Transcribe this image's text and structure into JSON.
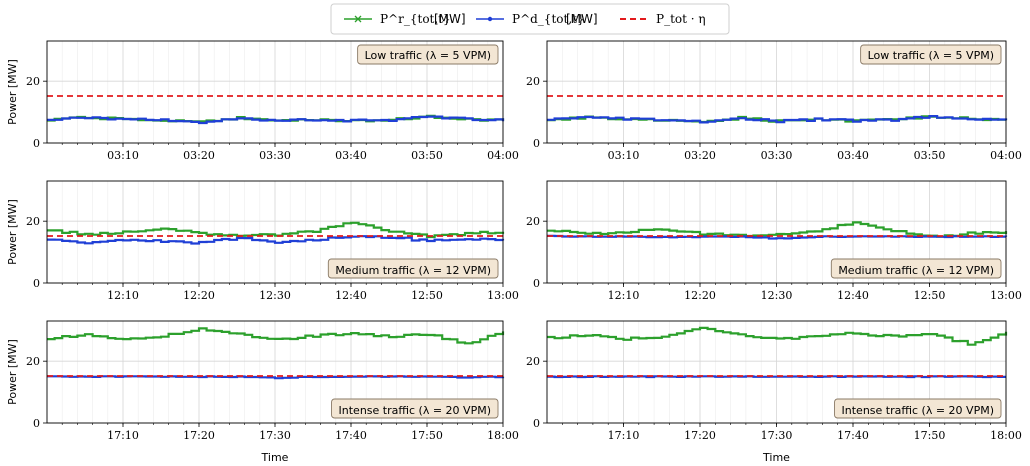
{
  "legend": {
    "items": [
      {
        "label": "P^r_{tot,t}",
        "unit": "[MW]",
        "color": "#2ca02c",
        "marker": "x"
      },
      {
        "label": "P^d_{tot,t}",
        "unit": "[MW]",
        "color": "#1f3fd6",
        "marker": "dot"
      },
      {
        "label": "P_tot · η",
        "unit": "",
        "color": "#e31a1c",
        "marker": "dashed"
      }
    ]
  },
  "colors": {
    "requested": "#2ca02c",
    "delivered": "#1f3fd6",
    "limit": "#e31a1c",
    "anno_bg": "#f3e6d4",
    "anno_border": "#8a7a66"
  },
  "chart_data": [
    {
      "type": "line",
      "panel": "row1-left",
      "annotation": "Low traffic (λ = 5 VPM)",
      "ylabel": "Power [MW]",
      "xlabel": "",
      "xlim": [
        "03:00",
        "04:00"
      ],
      "x_ticks": [
        "03:10",
        "03:20",
        "03:30",
        "03:40",
        "03:50",
        "04:00"
      ],
      "ylim": [
        0,
        33
      ],
      "y_ticks": [
        0,
        20
      ],
      "grid": true,
      "series": [
        {
          "name": "P^r_{tot,t}",
          "x": [
            "03:00",
            "03:05",
            "03:10",
            "03:15",
            "03:20",
            "03:25",
            "03:30",
            "03:35",
            "03:40",
            "03:45",
            "03:50",
            "03:55",
            "04:00"
          ],
          "values": [
            7.5,
            8.2,
            7.8,
            7.4,
            6.8,
            8.1,
            7.0,
            7.6,
            7.2,
            7.5,
            8.6,
            7.8,
            7.2
          ]
        },
        {
          "name": "P^d_{tot,t}",
          "x": [
            "03:00",
            "03:05",
            "03:10",
            "03:15",
            "03:20",
            "03:25",
            "03:30",
            "03:35",
            "03:40",
            "03:45",
            "03:50",
            "03:55",
            "04:00"
          ],
          "values": [
            7.5,
            8.2,
            7.8,
            7.4,
            6.8,
            8.1,
            7.0,
            7.6,
            7.2,
            7.5,
            8.6,
            7.8,
            7.2
          ]
        },
        {
          "name": "P_tot · η",
          "x": [
            "03:00",
            "04:00"
          ],
          "values": [
            15.2,
            15.2
          ]
        }
      ]
    },
    {
      "type": "line",
      "panel": "row1-right",
      "annotation": "Low traffic (λ = 5 VPM)",
      "ylabel": "",
      "xlabel": "",
      "xlim": [
        "03:00",
        "04:00"
      ],
      "x_ticks": [
        "03:10",
        "03:20",
        "03:30",
        "03:40",
        "03:50",
        "04:00"
      ],
      "ylim": [
        0,
        33
      ],
      "y_ticks": [
        0,
        20
      ],
      "grid": true,
      "series": [
        {
          "name": "P^r_{tot,t}",
          "x": [
            "03:00",
            "03:05",
            "03:10",
            "03:15",
            "03:20",
            "03:25",
            "03:30",
            "03:35",
            "03:40",
            "03:45",
            "03:50",
            "03:55",
            "04:00"
          ],
          "values": [
            7.5,
            8.2,
            7.8,
            7.4,
            6.8,
            8.1,
            7.0,
            7.6,
            7.2,
            7.5,
            8.6,
            7.8,
            7.2
          ]
        },
        {
          "name": "P^d_{tot,t}",
          "x": [
            "03:00",
            "03:05",
            "03:10",
            "03:15",
            "03:20",
            "03:25",
            "03:30",
            "03:35",
            "03:40",
            "03:45",
            "03:50",
            "03:55",
            "04:00"
          ],
          "values": [
            7.5,
            8.2,
            7.8,
            7.4,
            6.8,
            8.1,
            7.0,
            7.6,
            7.2,
            7.5,
            8.6,
            7.8,
            7.2
          ]
        },
        {
          "name": "P_tot · η",
          "x": [
            "03:00",
            "04:00"
          ],
          "values": [
            15.2,
            15.2
          ]
        }
      ]
    },
    {
      "type": "line",
      "panel": "row2-left",
      "annotation": "Medium traffic (λ = 12 VPM)",
      "ylabel": "Power [MW]",
      "xlabel": "",
      "xlim": [
        "12:00",
        "13:00"
      ],
      "x_ticks": [
        "12:10",
        "12:20",
        "12:30",
        "12:40",
        "12:50",
        "13:00"
      ],
      "ylim": [
        0,
        33
      ],
      "y_ticks": [
        0,
        20
      ],
      "grid": true,
      "series": [
        {
          "name": "P^r_{tot,t}",
          "x": [
            "12:00",
            "12:05",
            "12:10",
            "12:15",
            "12:20",
            "12:25",
            "12:30",
            "12:35",
            "12:40",
            "12:45",
            "12:50",
            "12:55",
            "13:00"
          ],
          "values": [
            17.0,
            15.8,
            16.4,
            17.6,
            16.0,
            15.4,
            15.6,
            16.8,
            19.6,
            16.8,
            15.0,
            16.0,
            16.6
          ]
        },
        {
          "name": "P^d_{tot,t}",
          "x": [
            "12:00",
            "12:05",
            "12:10",
            "12:15",
            "12:20",
            "12:25",
            "12:30",
            "12:35",
            "12:40",
            "12:45",
            "12:50",
            "12:55",
            "13:00"
          ],
          "values": [
            14.2,
            13.2,
            14.0,
            13.6,
            13.0,
            14.6,
            13.2,
            14.0,
            15.0,
            14.8,
            13.6,
            14.4,
            14.0
          ]
        },
        {
          "name": "P_tot · η",
          "x": [
            "12:00",
            "13:00"
          ],
          "values": [
            15.2,
            15.2
          ]
        }
      ]
    },
    {
      "type": "line",
      "panel": "row2-right",
      "annotation": "Medium traffic (λ = 12 VPM)",
      "ylabel": "",
      "xlabel": "",
      "xlim": [
        "12:00",
        "13:00"
      ],
      "x_ticks": [
        "12:10",
        "12:20",
        "12:30",
        "12:40",
        "12:50",
        "13:00"
      ],
      "ylim": [
        0,
        33
      ],
      "y_ticks": [
        0,
        20
      ],
      "grid": true,
      "series": [
        {
          "name": "P^r_{tot,t}",
          "x": [
            "12:00",
            "12:05",
            "12:10",
            "12:15",
            "12:20",
            "12:25",
            "12:30",
            "12:35",
            "12:40",
            "12:45",
            "12:50",
            "12:55",
            "13:00"
          ],
          "values": [
            17.0,
            15.8,
            16.4,
            17.6,
            16.0,
            15.4,
            15.6,
            16.8,
            19.6,
            16.8,
            15.0,
            16.0,
            16.6
          ]
        },
        {
          "name": "P^d_{tot,t}",
          "x": [
            "12:00",
            "12:05",
            "12:10",
            "12:15",
            "12:20",
            "12:25",
            "12:30",
            "12:35",
            "12:40",
            "12:45",
            "12:50",
            "12:55",
            "13:00"
          ],
          "values": [
            15.2,
            15.0,
            15.0,
            14.8,
            15.0,
            15.0,
            14.4,
            15.0,
            15.0,
            15.0,
            15.0,
            15.0,
            15.0
          ]
        },
        {
          "name": "P_tot · η",
          "x": [
            "12:00",
            "13:00"
          ],
          "values": [
            15.2,
            15.2
          ]
        }
      ]
    },
    {
      "type": "line",
      "panel": "row3-left",
      "annotation": "Intense traffic (λ = 20 VPM)",
      "ylabel": "Power [MW]",
      "xlabel": "Time",
      "xlim": [
        "17:00",
        "18:00"
      ],
      "x_ticks": [
        "17:10",
        "17:20",
        "17:30",
        "17:40",
        "17:50",
        "18:00"
      ],
      "ylim": [
        0,
        33
      ],
      "y_ticks": [
        0,
        20
      ],
      "grid": true,
      "series": [
        {
          "name": "P^r_{tot,t}",
          "x": [
            "17:00",
            "17:05",
            "17:10",
            "17:15",
            "17:20",
            "17:25",
            "17:30",
            "17:35",
            "17:40",
            "17:45",
            "17:50",
            "17:55",
            "18:00"
          ],
          "values": [
            27.5,
            28.4,
            27.2,
            28.0,
            30.6,
            28.6,
            27.0,
            28.2,
            29.0,
            28.0,
            28.6,
            25.6,
            29.4
          ]
        },
        {
          "name": "P^d_{tot,t}",
          "x": [
            "17:00",
            "17:05",
            "17:10",
            "17:15",
            "17:20",
            "17:25",
            "17:30",
            "17:35",
            "17:40",
            "17:45",
            "17:50",
            "17:55",
            "18:00"
          ],
          "values": [
            15.0,
            15.0,
            15.0,
            15.0,
            15.0,
            15.0,
            14.6,
            15.0,
            15.0,
            15.0,
            15.0,
            14.8,
            15.0
          ]
        },
        {
          "name": "P_tot · η",
          "x": [
            "17:00",
            "18:00"
          ],
          "values": [
            15.2,
            15.2
          ]
        }
      ]
    },
    {
      "type": "line",
      "panel": "row3-right",
      "annotation": "Intense traffic (λ = 20 VPM)",
      "ylabel": "",
      "xlabel": "Time",
      "xlim": [
        "17:00",
        "18:00"
      ],
      "x_ticks": [
        "17:10",
        "17:20",
        "17:30",
        "17:40",
        "17:50",
        "18:00"
      ],
      "ylim": [
        0,
        33
      ],
      "y_ticks": [
        0,
        20
      ],
      "grid": true,
      "series": [
        {
          "name": "P^r_{tot,t}",
          "x": [
            "17:00",
            "17:05",
            "17:10",
            "17:15",
            "17:20",
            "17:25",
            "17:30",
            "17:35",
            "17:40",
            "17:45",
            "17:50",
            "17:55",
            "18:00"
          ],
          "values": [
            27.5,
            28.4,
            27.2,
            28.0,
            30.6,
            28.6,
            27.0,
            28.2,
            29.0,
            28.0,
            28.6,
            25.6,
            29.4
          ]
        },
        {
          "name": "P^d_{tot,t}",
          "x": [
            "17:00",
            "17:05",
            "17:10",
            "17:15",
            "17:20",
            "17:25",
            "17:30",
            "17:35",
            "17:40",
            "17:45",
            "17:50",
            "17:55",
            "18:00"
          ],
          "values": [
            15.0,
            15.0,
            15.0,
            15.0,
            15.0,
            15.0,
            15.0,
            15.0,
            15.0,
            15.0,
            15.0,
            15.0,
            15.0
          ]
        },
        {
          "name": "P_tot · η",
          "x": [
            "17:00",
            "18:00"
          ],
          "values": [
            15.2,
            15.2
          ]
        }
      ]
    }
  ]
}
